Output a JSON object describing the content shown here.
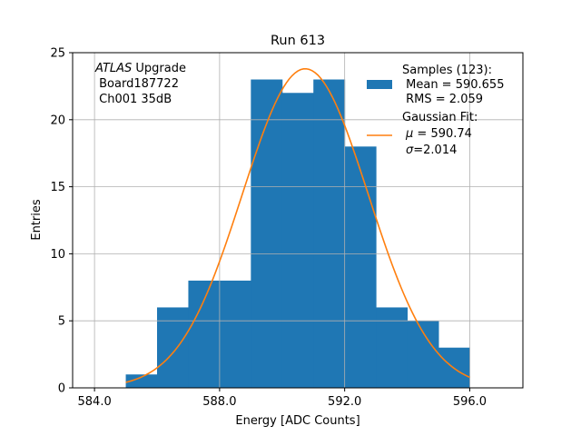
{
  "chart_data": {
    "type": "bar",
    "title": "Run 613",
    "xlabel": "Energy [ADC Counts]",
    "ylabel": "Entries",
    "xlim": [
      583.3,
      597.7
    ],
    "ylim": [
      0,
      25
    ],
    "grid": true,
    "x_ticks": [
      584,
      588,
      592,
      596
    ],
    "x_tick_labels": [
      "584.0",
      "588.0",
      "592.0",
      "596.0"
    ],
    "y_ticks": [
      0,
      5,
      10,
      15,
      20,
      25
    ],
    "y_tick_labels": [
      "0",
      "5",
      "10",
      "15",
      "20",
      "25"
    ],
    "histogram": {
      "bin_edges": [
        585,
        586,
        587,
        588,
        589,
        590,
        591,
        592,
        593,
        594,
        595,
        596
      ],
      "counts": [
        1,
        6,
        8,
        8,
        23,
        22,
        23,
        18,
        6,
        5,
        3
      ],
      "color": "#1f77b4"
    },
    "gaussian_fit": {
      "mu": 590.74,
      "sigma": 2.014,
      "amplitude": 23.8,
      "x_range": [
        585,
        596
      ],
      "color": "#ff7f0e"
    },
    "annotation": {
      "italic": "ATLAS",
      "rest": " Upgrade",
      "line2": " Board187722",
      "line3": " Ch001 35dB"
    },
    "legend": {
      "placement": "top-right",
      "samples": {
        "line1": "Samples (123):",
        "line2": " Mean = 590.655",
        "line3": " RMS = 2.059"
      },
      "fit": {
        "line1": "Gaussian Fit:",
        "line2_sym": "μ",
        "line2_rest": " = 590.74",
        "line3_sym": "σ",
        "line3_rest": "=2.014"
      }
    }
  }
}
